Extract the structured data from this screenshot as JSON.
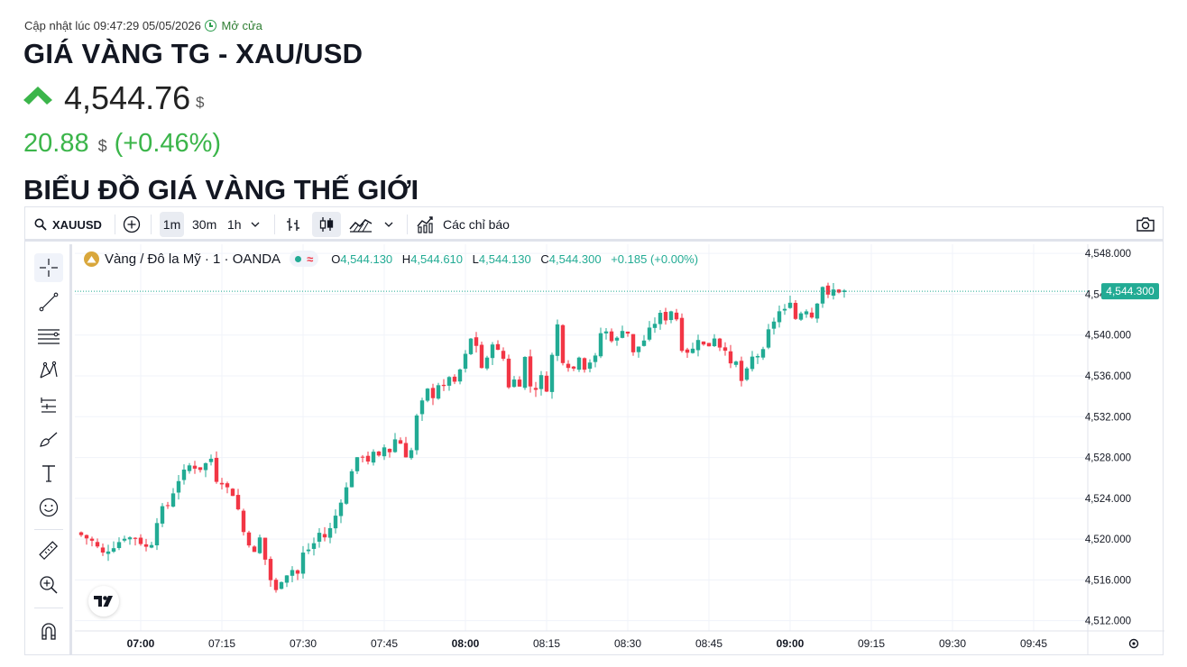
{
  "header": {
    "updated_label": "Cập nhật lúc 09:47:29 05/05/2026",
    "market_status": "Mở cửa",
    "title": "GIÁ VÀNG TG - XAU/USD",
    "price": "4,544.76",
    "currency": "$",
    "change": "20.88",
    "change_percent": "(+0.46%)",
    "trend_icon": "up-arrow-icon",
    "up_color": "#3bb54a"
  },
  "section_title": "BIỂU ĐỒ GIÁ VÀNG THẾ GIỚI",
  "toolbar": {
    "symbol": "XAUUSD",
    "intervals": [
      "1m",
      "30m",
      "1h"
    ],
    "active_interval": "1m",
    "indicators_label": "Các chỉ báo"
  },
  "legend": {
    "instrument": "Vàng / Đô la Mỹ · 1 · OANDA",
    "open_label": "O",
    "open": "4,544.130",
    "high_label": "H",
    "high": "4,544.610",
    "low_label": "L",
    "low": "4,544.130",
    "close_label": "C",
    "close": "4,544.300",
    "change": "+0.185 (+0.00%)"
  },
  "chart_data": {
    "type": "candlestick",
    "interval": "1m",
    "xlabel": "",
    "ylabel": "",
    "y_ticks": [
      "4,548.000",
      "4,544.000",
      "4,540.000",
      "4,536.000",
      "4,532.000",
      "4,528.000",
      "4,524.000",
      "4,520.000",
      "4,516.000",
      "4,512.000"
    ],
    "ylim": [
      4511.0,
      4548.9
    ],
    "x_ticks": [
      {
        "label": "07:00",
        "minute": 0,
        "bold": true
      },
      {
        "label": "07:15",
        "minute": 15,
        "bold": false
      },
      {
        "label": "07:30",
        "minute": 30,
        "bold": false
      },
      {
        "label": "07:45",
        "minute": 45,
        "bold": false
      },
      {
        "label": "08:00",
        "minute": 60,
        "bold": true
      },
      {
        "label": "08:15",
        "minute": 75,
        "bold": false
      },
      {
        "label": "08:30",
        "minute": 90,
        "bold": false
      },
      {
        "label": "08:45",
        "minute": 105,
        "bold": false
      },
      {
        "label": "09:00",
        "minute": 120,
        "bold": true
      },
      {
        "label": "09:15",
        "minute": 135,
        "bold": false
      },
      {
        "label": "09:30",
        "minute": 150,
        "bold": false
      },
      {
        "label": "09:45",
        "minute": 165,
        "bold": false
      }
    ],
    "last_price": 4544.3,
    "last_price_label": "4,544.300",
    "grid": true,
    "up_color": "#22ab94",
    "down_color": "#f23645",
    "anchors": [
      [
        -11,
        4520.4
      ],
      [
        -9,
        4519.8
      ],
      [
        -7,
        4518.6
      ],
      [
        -5,
        4519.3
      ],
      [
        -3,
        4520.2
      ],
      [
        -1,
        4520.1
      ],
      [
        1,
        4519.2
      ],
      [
        2,
        4519.6
      ],
      [
        3,
        4521.8
      ],
      [
        4,
        4523.0
      ],
      [
        5,
        4523.3
      ],
      [
        6,
        4524.6
      ],
      [
        7,
        4525.8
      ],
      [
        8,
        4526.6
      ],
      [
        9,
        4527.2
      ],
      [
        11,
        4526.9
      ],
      [
        13,
        4527.9
      ],
      [
        14,
        4525.8
      ],
      [
        15,
        4525.6
      ],
      [
        17,
        4524.4
      ],
      [
        18,
        4522.9
      ],
      [
        19,
        4520.7
      ],
      [
        20,
        4519.6
      ],
      [
        21,
        4518.6
      ],
      [
        22,
        4520.1
      ],
      [
        23,
        4518.0
      ],
      [
        24,
        4516.0
      ],
      [
        25,
        4514.9
      ],
      [
        26,
        4516.0
      ],
      [
        27,
        4516.6
      ],
      [
        28,
        4517.0
      ],
      [
        29,
        4516.6
      ],
      [
        30,
        4518.6
      ],
      [
        31,
        4519.0
      ],
      [
        32,
        4519.6
      ],
      [
        33,
        4520.6
      ],
      [
        34,
        4520.2
      ],
      [
        35,
        4521.0
      ],
      [
        36,
        4522.3
      ],
      [
        37,
        4523.8
      ],
      [
        38,
        4525.0
      ],
      [
        39,
        4526.8
      ],
      [
        40,
        4527.8
      ],
      [
        41,
        4528.2
      ],
      [
        42,
        4527.7
      ],
      [
        43,
        4528.4
      ],
      [
        44,
        4528.0
      ],
      [
        45,
        4529.0
      ],
      [
        46,
        4528.6
      ],
      [
        47,
        4529.8
      ],
      [
        48,
        4529.4
      ],
      [
        49,
        4528.2
      ],
      [
        50,
        4528.7
      ],
      [
        51,
        4532.0
      ],
      [
        52,
        4533.4
      ],
      [
        53,
        4534.6
      ],
      [
        54,
        4534.0
      ],
      [
        55,
        4535.2
      ],
      [
        56,
        4534.8
      ],
      [
        57,
        4536.0
      ],
      [
        58,
        4535.2
      ],
      [
        59,
        4536.6
      ],
      [
        60,
        4538.0
      ],
      [
        61,
        4539.6
      ],
      [
        62,
        4539.0
      ],
      [
        63,
        4536.8
      ],
      [
        64,
        4537.6
      ],
      [
        65,
        4539.3
      ],
      [
        66,
        4538.4
      ],
      [
        67,
        4537.7
      ],
      [
        68,
        4535.0
      ],
      [
        69,
        4535.6
      ],
      [
        70,
        4535.2
      ],
      [
        71,
        4537.8
      ],
      [
        72,
        4535.0
      ],
      [
        73,
        4534.8
      ],
      [
        74,
        4535.9
      ],
      [
        75,
        4534.7
      ],
      [
        76,
        4538.0
      ],
      [
        77,
        4541.0
      ],
      [
        78,
        4537.5
      ],
      [
        79,
        4537.0
      ],
      [
        80,
        4536.7
      ],
      [
        81,
        4538.0
      ],
      [
        82,
        4536.8
      ],
      [
        83,
        4537.4
      ],
      [
        84,
        4537.8
      ],
      [
        85,
        4540.2
      ],
      [
        86,
        4540.3
      ],
      [
        87,
        4539.6
      ],
      [
        88,
        4539.6
      ],
      [
        89,
        4540.6
      ],
      [
        90,
        4540.2
      ],
      [
        91,
        4538.2
      ],
      [
        92,
        4538.9
      ],
      [
        93,
        4539.5
      ],
      [
        94,
        4540.5
      ],
      [
        95,
        4541.2
      ],
      [
        96,
        4542.0
      ],
      [
        97,
        4541.6
      ],
      [
        98,
        4542.4
      ],
      [
        99,
        4541.6
      ],
      [
        100,
        4538.7
      ],
      [
        101,
        4538.4
      ],
      [
        102,
        4538.6
      ],
      [
        103,
        4539.7
      ],
      [
        104,
        4539.0
      ],
      [
        105,
        4539.0
      ],
      [
        106,
        4539.8
      ],
      [
        107,
        4538.9
      ],
      [
        108,
        4538.7
      ],
      [
        109,
        4537.0
      ],
      [
        110,
        4537.3
      ],
      [
        111,
        4535.5
      ],
      [
        112,
        4536.5
      ],
      [
        113,
        4537.8
      ],
      [
        114,
        4538.0
      ],
      [
        115,
        4538.4
      ],
      [
        116,
        4540.4
      ],
      [
        117,
        4541.4
      ],
      [
        118,
        4542.3
      ],
      [
        119,
        4542.4
      ],
      [
        120,
        4543.4
      ],
      [
        121,
        4541.6
      ],
      [
        122,
        4542.2
      ],
      [
        123,
        4542.5
      ],
      [
        124,
        4541.8
      ],
      [
        125,
        4543.3
      ],
      [
        126,
        4544.8
      ],
      [
        127,
        4543.8
      ],
      [
        128,
        4544.4
      ],
      [
        129,
        4544.3
      ],
      [
        130,
        4544.3
      ]
    ]
  }
}
